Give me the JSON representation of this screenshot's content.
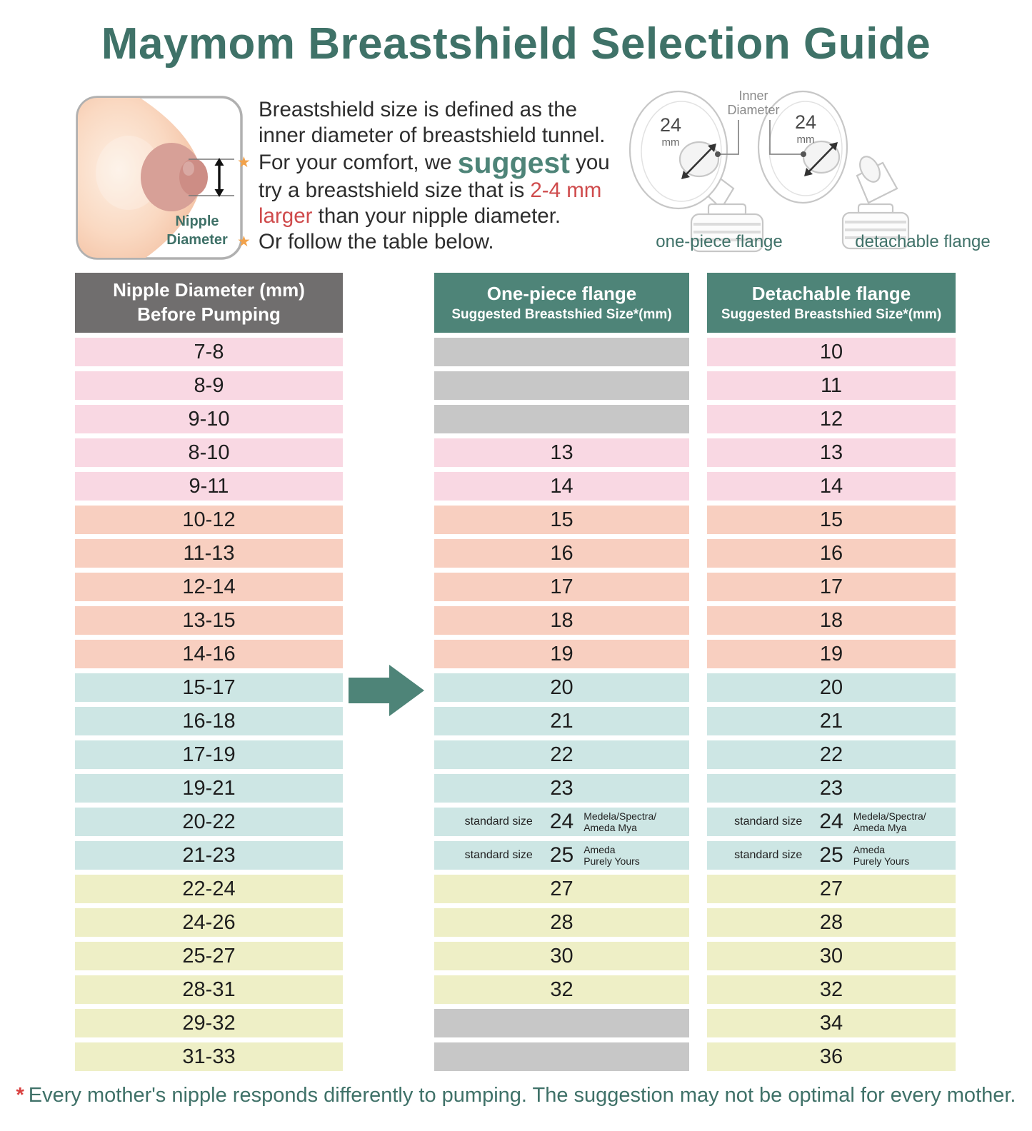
{
  "title": "Maymom Breastshield Selection Guide",
  "intro": {
    "star": "★",
    "sentence": "Breastshield size is defined as the inner diameter of breastshield tunnel.",
    "bullet1": {
      "pre": "For your comfort, we ",
      "emphasis": "suggest",
      "mid": " you try a breastshield size that is ",
      "highlight": "2-4 mm larger",
      "post": " than your nipple diameter."
    },
    "bullet2": "Or follow the table below."
  },
  "diagram": {
    "breast": {
      "label_line1": "Nipple",
      "label_line2": "Diameter"
    },
    "flanges": {
      "inner_diameter_line1": "Inner",
      "inner_diameter_line2": "Diameter",
      "size_value": "24",
      "size_unit": "mm",
      "left_caption": "one-piece flange",
      "right_caption": "detachable flange"
    }
  },
  "table": {
    "columns": [
      {
        "title": "Nipple Diameter (mm)",
        "subtitle": "Before Pumping"
      },
      {
        "title": "One-piece flange",
        "subtitle": "Suggested Breastshied Size*(mm)"
      },
      {
        "title": "Detachable flange",
        "subtitle": "Suggested Breastshied Size*(mm)"
      }
    ],
    "rows": [
      {
        "nipple": "7-8",
        "group": "pink",
        "one_piece": null,
        "detachable": "10"
      },
      {
        "nipple": "8-9",
        "group": "pink",
        "one_piece": null,
        "detachable": "11"
      },
      {
        "nipple": "9-10",
        "group": "pink",
        "one_piece": null,
        "detachable": "12"
      },
      {
        "nipple": "8-10",
        "group": "pink",
        "one_piece": "13",
        "detachable": "13"
      },
      {
        "nipple": "9-11",
        "group": "pink",
        "one_piece": "14",
        "detachable": "14"
      },
      {
        "nipple": "10-12",
        "group": "salmon",
        "one_piece": "15",
        "detachable": "15"
      },
      {
        "nipple": "11-13",
        "group": "salmon",
        "one_piece": "16",
        "detachable": "16"
      },
      {
        "nipple": "12-14",
        "group": "salmon",
        "one_piece": "17",
        "detachable": "17"
      },
      {
        "nipple": "13-15",
        "group": "salmon",
        "one_piece": "18",
        "detachable": "18"
      },
      {
        "nipple": "14-16",
        "group": "salmon",
        "one_piece": "19",
        "detachable": "19"
      },
      {
        "nipple": "15-17",
        "group": "blue",
        "one_piece": "20",
        "detachable": "20"
      },
      {
        "nipple": "16-18",
        "group": "blue",
        "one_piece": "21",
        "detachable": "21"
      },
      {
        "nipple": "17-19",
        "group": "blue",
        "one_piece": "22",
        "detachable": "22"
      },
      {
        "nipple": "19-21",
        "group": "blue",
        "one_piece": "23",
        "detachable": "23"
      },
      {
        "nipple": "20-22",
        "group": "blue",
        "one_piece": {
          "label": "standard size",
          "size": "24",
          "brands": "Medela/Spectra/\nAmeda Mya"
        },
        "detachable": {
          "label": "standard size",
          "size": "24",
          "brands": "Medela/Spectra/\nAmeda Mya"
        }
      },
      {
        "nipple": "21-23",
        "group": "blue",
        "one_piece": {
          "label": "standard size",
          "size": "25",
          "brands": "Ameda\nPurely Yours"
        },
        "detachable": {
          "label": "standard size",
          "size": "25",
          "brands": "Ameda\nPurely Yours"
        }
      },
      {
        "nipple": "22-24",
        "group": "yellow",
        "one_piece": "27",
        "detachable": "27"
      },
      {
        "nipple": "24-26",
        "group": "yellow",
        "one_piece": "28",
        "detachable": "28"
      },
      {
        "nipple": "25-27",
        "group": "yellow",
        "one_piece": "30",
        "detachable": "30"
      },
      {
        "nipple": "28-31",
        "group": "yellow",
        "one_piece": "32",
        "detachable": "32"
      },
      {
        "nipple": "29-32",
        "group": "yellow",
        "one_piece": null,
        "detachable": "34"
      },
      {
        "nipple": "31-33",
        "group": "yellow",
        "one_piece": null,
        "detachable": "36"
      }
    ]
  },
  "footnote": {
    "asterisk": "*",
    "text": "Every mother's nipple responds differently to pumping. The suggestion may not be optimal for every mother."
  },
  "colors": {
    "title_teal": "#3f7268",
    "header_teal": "#4e8478",
    "header_gray": "#706e6e",
    "row_pink": "#f9d8e3",
    "row_salmon": "#f8cfc0",
    "row_blue": "#cde6e4",
    "row_yellow": "#eeefc6",
    "empty_gray": "#c7c7c7",
    "highlight_red": "#cf4b4c",
    "star_orange": "#f2a24b"
  }
}
